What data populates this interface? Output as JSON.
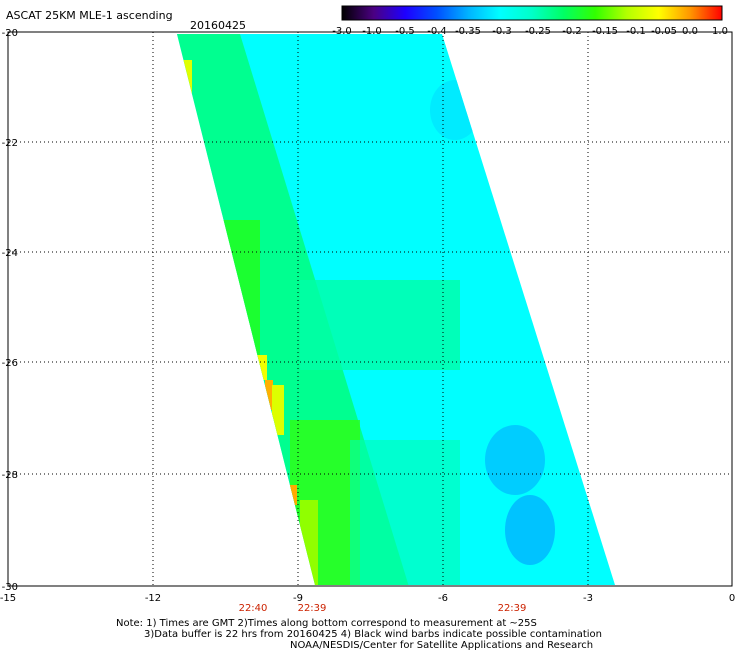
{
  "header": {
    "title": "ASCAT 25KM MLE-1 ascending",
    "date": "20160425"
  },
  "colorbar": {
    "labels": [
      "-3.0",
      "-1.0",
      "-0.5",
      "-0.4",
      "-0.35",
      "-0.3",
      "-0.25",
      "-0.2",
      "-0.15",
      "-0.1",
      "-0.05",
      "0.0",
      "1.0"
    ],
    "colors": [
      "#000000",
      "#4b0082",
      "#1e00ff",
      "#0050ff",
      "#00b4ff",
      "#00ffff",
      "#00ffc8",
      "#00ff64",
      "#32ff00",
      "#b4ff00",
      "#ffff00",
      "#ff9600",
      "#ff0000"
    ]
  },
  "axes": {
    "x_ticks": [
      "-15",
      "-12",
      "-9",
      "-6",
      "-3",
      "0"
    ],
    "y_ticks": [
      "-20",
      "-22",
      "-24",
      "-26",
      "-28",
      "-30"
    ],
    "grid": true,
    "grid_style": "dotted"
  },
  "time_labels": [
    "22:40",
    "22:39",
    "22:39"
  ],
  "swath": {
    "fill_colors": {
      "cyan": "#00ffff",
      "aqua": "#00f0e0",
      "green_cyan": "#00ffa0",
      "green": "#00ff50",
      "lime": "#40ff00",
      "yellow": "#ffff00",
      "orange": "#ff9600",
      "blue": "#00b4ff"
    }
  },
  "notes": {
    "line1": "Note: 1) Times are GMT 2)Times along bottom correspond to measurement at ~25S",
    "line2": "3)Data buffer is 22 hrs from 20160425 4) Black wind barbs indicate possible contamination",
    "line3": "NOAA/NESDIS/Center for Satellite Applications and Research"
  }
}
